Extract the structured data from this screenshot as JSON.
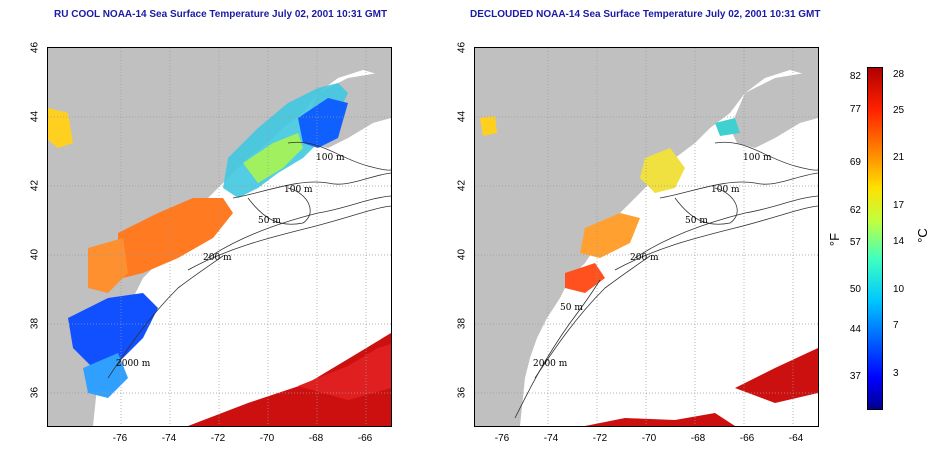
{
  "left_panel": {
    "title": "RU COOL NOAA-14 Sea Surface Temperature July 02, 2001 10:31 GMT",
    "contour_labels": [
      "100 m",
      "100 m",
      "50 m",
      "200 m",
      "2000 m"
    ]
  },
  "right_panel": {
    "title": "DECLOUDED NOAA-14 Sea Surface Temperature July 02, 2001 10:31 GMT",
    "contour_labels": [
      "100 m",
      "100 m",
      "50 m",
      "200 m",
      "50 m",
      "2000 m"
    ]
  },
  "map_extent": {
    "lon": [
      -77,
      -63
    ],
    "lat": [
      35,
      46
    ]
  },
  "x_ticks": [
    "-76",
    "-74",
    "-72",
    "-70",
    "-68",
    "-66",
    "-64"
  ],
  "y_ticks": [
    "46",
    "44",
    "42",
    "40",
    "38",
    "36"
  ],
  "colorbar": {
    "unit_f": "°F",
    "unit_c": "°C",
    "f_labels": [
      "82",
      "77",
      "69",
      "62",
      "57",
      "50",
      "44",
      "37"
    ],
    "c_labels": [
      "28",
      "25",
      "21",
      "17",
      "14",
      "10",
      "7",
      "3"
    ]
  },
  "colors": {
    "land": "#c0c0c0",
    "clouds": "#ffffff",
    "title": "#1a1aa6",
    "grid": "#999999"
  }
}
